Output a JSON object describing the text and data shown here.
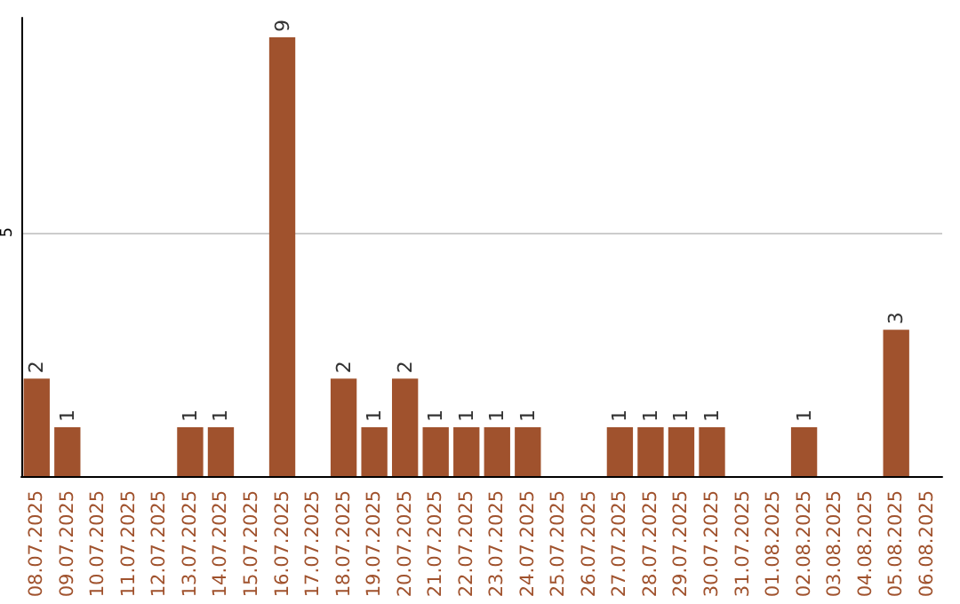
{
  "chart_data": {
    "type": "bar",
    "categories": [
      "08.07.2025",
      "09.07.2025",
      "10.07.2025",
      "11.07.2025",
      "12.07.2025",
      "13.07.2025",
      "14.07.2025",
      "15.07.2025",
      "16.07.2025",
      "17.07.2025",
      "18.07.2025",
      "19.07.2025",
      "20.07.2025",
      "21.07.2025",
      "22.07.2025",
      "23.07.2025",
      "24.07.2025",
      "25.07.2025",
      "26.07.2025",
      "27.07.2025",
      "28.07.2025",
      "29.07.2025",
      "30.07.2025",
      "31.07.2025",
      "01.08.2025",
      "02.08.2025",
      "03.08.2025",
      "04.08.2025",
      "05.08.2025",
      "06.08.2025"
    ],
    "values": [
      2,
      1,
      0,
      0,
      0,
      1,
      1,
      0,
      9,
      0,
      2,
      1,
      2,
      1,
      1,
      1,
      1,
      0,
      0,
      1,
      1,
      1,
      1,
      0,
      0,
      1,
      0,
      0,
      3,
      0
    ],
    "value_labels": [
      "2",
      "1",
      null,
      null,
      null,
      "1",
      "1",
      null,
      "9",
      null,
      "2",
      "1",
      "2",
      "1",
      "1",
      "1",
      "1",
      null,
      null,
      "1",
      "1",
      "1",
      "1",
      null,
      null,
      "1",
      null,
      null,
      "3",
      null
    ],
    "color": "#a0522d",
    "ylim": [
      0,
      9.4
    ],
    "yticks": [
      5
    ],
    "grid": "y"
  }
}
